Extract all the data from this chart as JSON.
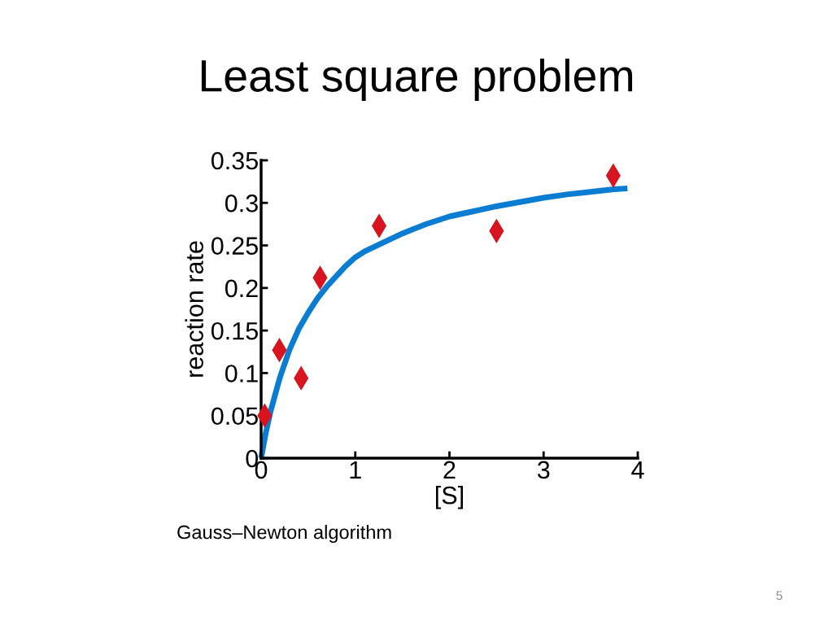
{
  "chart_data": {
    "type": "scatter",
    "title": "Least square problem",
    "xlabel": "[S]",
    "ylabel": "reaction rate",
    "series": [
      {
        "color": "#d8141f",
        "marker": "diamond",
        "x": [
          0.038,
          0.194,
          0.425,
          0.626,
          1.253,
          2.5,
          3.74
        ],
        "values": [
          0.05,
          0.127,
          0.094,
          0.212,
          0.273,
          0.267,
          0.332
        ]
      },
      {
        "type": "line",
        "color": "#0a7dd2",
        "line_style": "solid",
        "x": [
          0,
          0.02,
          0.05,
          0.1,
          0.2,
          0.3,
          0.4,
          0.5,
          0.6,
          0.7,
          0.8,
          0.9,
          1.0,
          1.1,
          1.25,
          1.5,
          1.75,
          2.0,
          2.25,
          2.5,
          2.75,
          3.0,
          3.25,
          3.5,
          3.75,
          3.89
        ],
        "values": [
          0,
          0.012,
          0.03,
          0.055,
          0.095,
          0.127,
          0.152,
          0.171,
          0.188,
          0.202,
          0.214,
          0.226,
          0.236,
          0.243,
          0.251,
          0.264,
          0.275,
          0.284,
          0.29,
          0.296,
          0.301,
          0.306,
          0.31,
          0.313,
          0.316,
          0.317
        ]
      }
    ],
    "xlim": [
      0,
      4
    ],
    "ylim": [
      0,
      0.35
    ],
    "xticks": [
      0,
      1,
      2,
      3,
      4
    ],
    "yticks": [
      0,
      0.05,
      0.1,
      0.15,
      0.2,
      0.25,
      0.3,
      0.35
    ],
    "annotations": [
      "Gauss–Newton algorithm",
      "5"
    ]
  }
}
